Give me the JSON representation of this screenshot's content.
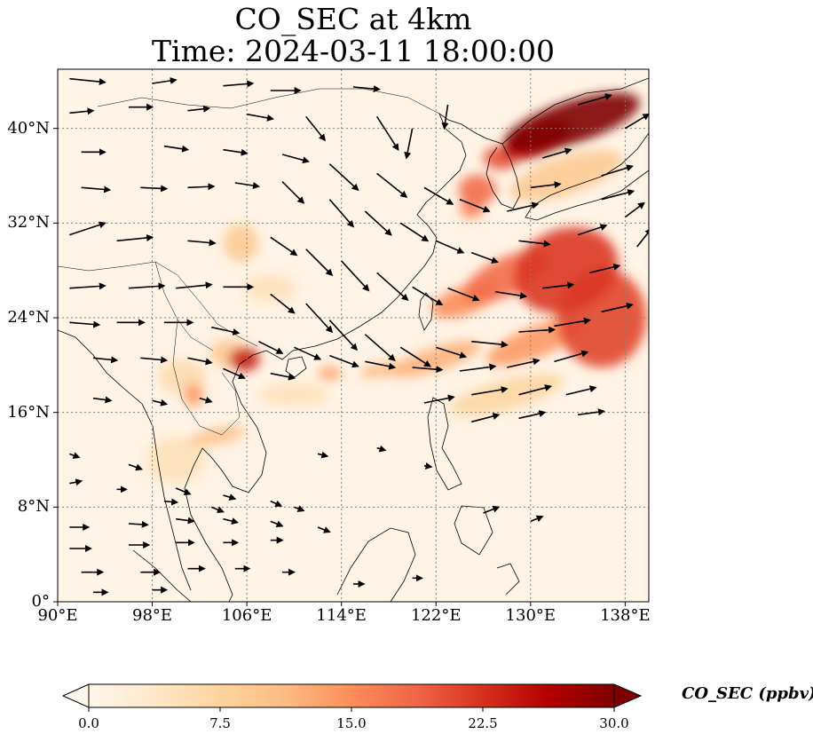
{
  "title_line1": "CO_SEC at 4km",
  "title_line2": "Time: 2024-03-11 18:00:00",
  "map": {
    "lon_range": [
      90,
      140
    ],
    "lat_range": [
      0,
      45
    ],
    "lat_ticks": [
      "40°N",
      "32°N",
      "24°N",
      "16°N",
      "8°N",
      "0°"
    ],
    "lat_values": [
      40,
      32,
      24,
      16,
      8,
      0
    ],
    "lon_ticks": [
      "90°E",
      "98°E",
      "106°E",
      "114°E",
      "122°E",
      "130°E",
      "138°E"
    ],
    "lon_values": [
      90,
      98,
      106,
      114,
      122,
      130,
      138
    ],
    "gridlines": "dotted"
  },
  "colorbar": {
    "label": "CO_SEC (ppbv)",
    "ticks": [
      "0.0",
      "7.5",
      "15.0",
      "22.5",
      "30.0"
    ],
    "tick_values": [
      0,
      7.5,
      15,
      22.5,
      30
    ],
    "range": [
      0,
      30
    ],
    "extend": "both",
    "colormap": "OrRd",
    "colors": [
      "#fff7ec",
      "#fdd49e",
      "#fc8d59",
      "#d7301f",
      "#7f0000"
    ]
  },
  "plumes": [
    {
      "lon": 133.5,
      "lat": 40.5,
      "rlon": 6,
      "rlat": 1.8,
      "value": 30,
      "rot": -18
    },
    {
      "lon": 130.5,
      "lat": 39.0,
      "rlon": 3,
      "rlat": 1.4,
      "value": 26,
      "rot": -20
    },
    {
      "lon": 127.5,
      "lat": 37.5,
      "rlon": 1.5,
      "rlat": 1.0,
      "value": 20,
      "rot": 0
    },
    {
      "lon": 125.5,
      "lat": 34.8,
      "rlon": 1.6,
      "rlat": 1.3,
      "value": 18,
      "rot": 0
    },
    {
      "lon": 125.0,
      "lat": 33.2,
      "rlon": 1.0,
      "rlat": 0.8,
      "value": 16,
      "rot": 0
    },
    {
      "lon": 133.0,
      "lat": 28.0,
      "rlon": 4.5,
      "rlat": 3.5,
      "value": 22,
      "rot": -20
    },
    {
      "lon": 136.0,
      "lat": 24.0,
      "rlon": 3.8,
      "rlat": 4.2,
      "value": 21,
      "rot": 0
    },
    {
      "lon": 128.0,
      "lat": 27.5,
      "rlon": 4,
      "rlat": 1.6,
      "value": 18,
      "rot": -25
    },
    {
      "lon": 124.5,
      "lat": 25.5,
      "rlon": 3,
      "rlat": 1.2,
      "value": 15,
      "rot": -20
    },
    {
      "lon": 130.5,
      "lat": 22.0,
      "rlon": 4.5,
      "rlat": 1.3,
      "value": 14,
      "rot": -22
    },
    {
      "lon": 122.0,
      "lat": 20.5,
      "rlon": 4,
      "rlat": 1.0,
      "value": 12,
      "rot": -18
    },
    {
      "lon": 117.5,
      "lat": 19.6,
      "rlon": 2,
      "rlat": 0.6,
      "value": 11,
      "rot": -10
    },
    {
      "lon": 113.0,
      "lat": 19.3,
      "rlon": 1.0,
      "rlat": 0.6,
      "value": 13,
      "rot": 0
    },
    {
      "lon": 105.8,
      "lat": 20.5,
      "rlon": 1.3,
      "rlat": 1.0,
      "value": 24,
      "rot": 0
    },
    {
      "lon": 104.5,
      "lat": 21.0,
      "rlon": 1.6,
      "rlat": 1.2,
      "value": 9,
      "rot": 0
    },
    {
      "lon": 101.5,
      "lat": 17.5,
      "rlon": 0.8,
      "rlat": 1.0,
      "value": 14,
      "rot": 0
    },
    {
      "lon": 103.5,
      "lat": 14.0,
      "rlon": 2.5,
      "rlat": 0.7,
      "value": 10,
      "rot": -12
    },
    {
      "lon": 105.5,
      "lat": 30.3,
      "rlon": 1.5,
      "rlat": 1.6,
      "value": 9,
      "rot": 0
    },
    {
      "lon": 108.0,
      "lat": 26.5,
      "rlon": 2.2,
      "rlat": 1.2,
      "value": 5,
      "rot": 0
    },
    {
      "lon": 133.0,
      "lat": 36.0,
      "rlon": 5,
      "rlat": 1.6,
      "value": 9,
      "rot": -18
    },
    {
      "lon": 128.0,
      "lat": 17.5,
      "rlon": 5,
      "rlat": 1.3,
      "value": 7,
      "rot": -15
    },
    {
      "lon": 110.0,
      "lat": 17.5,
      "rlon": 3,
      "rlat": 1.0,
      "value": 5,
      "rot": 0
    },
    {
      "lon": 100.0,
      "lat": 12.0,
      "rlon": 2.5,
      "rlat": 2.0,
      "value": 5,
      "rot": 0
    },
    {
      "lon": 100.5,
      "lat": 19.0,
      "rlon": 2.0,
      "rlat": 1.5,
      "value": 6,
      "rot": 0
    }
  ],
  "wind_arrows": [
    [
      91,
      44.2,
      3,
      -0.3
    ],
    [
      98,
      43.8,
      2,
      0.3
    ],
    [
      104,
      43.6,
      2.5,
      0.2
    ],
    [
      108,
      43.2,
      2.5,
      0
    ],
    [
      115,
      43.5,
      2.2,
      -0.2
    ],
    [
      91,
      41.3,
      2,
      0.2
    ],
    [
      96,
      41.8,
      2,
      0
    ],
    [
      101,
      41.5,
      1.8,
      0.2
    ],
    [
      106,
      41.2,
      2.2,
      -0.4
    ],
    [
      111,
      41,
      1.6,
      -2
    ],
    [
      117,
      41,
      1.8,
      -2.8
    ],
    [
      120,
      40,
      -0.5,
      -2.5
    ],
    [
      123,
      42,
      -0.3,
      -2
    ],
    [
      92,
      38,
      2,
      0
    ],
    [
      99,
      38.5,
      2,
      -0.3
    ],
    [
      104,
      38.2,
      2,
      -0.3
    ],
    [
      109,
      37.8,
      2.2,
      -0.6
    ],
    [
      113,
      37,
      2.4,
      -2.2
    ],
    [
      117,
      36.2,
      2.5,
      -2
    ],
    [
      121,
      35,
      2.4,
      -1.4
    ],
    [
      124,
      34,
      2.5,
      -1
    ],
    [
      92,
      35,
      2.4,
      -0.2
    ],
    [
      97,
      35,
      2.2,
      -0.1
    ],
    [
      101,
      35,
      2.2,
      0.1
    ],
    [
      105,
      35.4,
      2,
      -0.3
    ],
    [
      109,
      35.5,
      1.8,
      -1.8
    ],
    [
      113,
      34,
      2,
      -2.3
    ],
    [
      116,
      33,
      2.2,
      -2
    ],
    [
      119,
      32,
      2.3,
      -1.5
    ],
    [
      122,
      30.5,
      2.3,
      -1
    ],
    [
      125,
      29.5,
      2.2,
      -0.8
    ],
    [
      129,
      30.5,
      2.6,
      -0.3
    ],
    [
      91,
      31,
      3,
      1
    ],
    [
      95,
      30.5,
      3,
      0.3
    ],
    [
      101,
      30.5,
      2.3,
      -0.2
    ],
    [
      108,
      30.8,
      2.2,
      -1.5
    ],
    [
      111,
      29.8,
      2.2,
      -2.2
    ],
    [
      114,
      28.8,
      2.3,
      -2.5
    ],
    [
      117,
      27.8,
      2.6,
      -2.3
    ],
    [
      120,
      26.6,
      2.5,
      -1.5
    ],
    [
      123,
      26.5,
      2.6,
      -1
    ],
    [
      127,
      26.2,
      2.6,
      -0.4
    ],
    [
      131,
      26.5,
      2.6,
      0.3
    ],
    [
      135,
      27.8,
      2.5,
      0.6
    ],
    [
      91,
      26.5,
      3,
      0.2
    ],
    [
      96,
      26.5,
      3,
      0.2
    ],
    [
      100,
      26.5,
      3,
      0.3
    ],
    [
      104,
      26.6,
      2.5,
      0
    ],
    [
      108,
      26,
      2,
      -1.6
    ],
    [
      111,
      25.2,
      2.2,
      -2.4
    ],
    [
      113,
      23.8,
      2.3,
      -2.5
    ],
    [
      116,
      22.6,
      2.5,
      -2.2
    ],
    [
      119,
      21.5,
      2.5,
      -1.6
    ],
    [
      122,
      21.5,
      2.5,
      -0.8
    ],
    [
      125,
      22,
      3,
      -0.3
    ],
    [
      129,
      22.8,
      3,
      0.2
    ],
    [
      132,
      23.3,
      3,
      0.5
    ],
    [
      136,
      24.5,
      2.6,
      0.6
    ],
    [
      91,
      23.6,
      2.5,
      -0.2
    ],
    [
      95,
      23.6,
      2.3,
      0
    ],
    [
      99,
      23.6,
      2.4,
      0
    ],
    [
      103,
      23.2,
      2.3,
      -0.5
    ],
    [
      107,
      22,
      2,
      -1
    ],
    [
      110,
      21.5,
      2.2,
      -1
    ],
    [
      113,
      20.8,
      2.4,
      -0.9
    ],
    [
      116,
      20.3,
      2.5,
      -0.5
    ],
    [
      120,
      19.8,
      2.5,
      -0.2
    ],
    [
      124,
      19.5,
      3,
      0.4
    ],
    [
      128,
      19.8,
      2.7,
      0.6
    ],
    [
      132,
      20.3,
      2.8,
      0.8
    ],
    [
      93,
      20.6,
      2,
      -0.2
    ],
    [
      97,
      20.6,
      2.2,
      -0.2
    ],
    [
      101,
      20.6,
      2,
      -0.4
    ],
    [
      104,
      19.7,
      1.8,
      -0.8
    ],
    [
      108,
      19.3,
      2,
      -0.4
    ],
    [
      125,
      17.5,
      3,
      0.5
    ],
    [
      129,
      17.5,
      2.7,
      0.7
    ],
    [
      133,
      17.5,
      2.5,
      0.6
    ],
    [
      93,
      17.2,
      1.5,
      -0.2
    ],
    [
      98,
      17,
      1.2,
      -0.3
    ],
    [
      102,
      17.2,
      1,
      -0.3
    ],
    [
      121,
      16.8,
      2.5,
      0.5
    ],
    [
      125,
      15.2,
      2.3,
      0.6
    ],
    [
      129,
      15.5,
      2.2,
      0.5
    ],
    [
      134,
      15.8,
      2.2,
      0.3
    ],
    [
      91,
      12.5,
      0.8,
      -0.3
    ],
    [
      96,
      11.6,
      1.1,
      -0.4
    ],
    [
      100,
      9.6,
      1.2,
      -0.5
    ],
    [
      104,
      9,
      1,
      -0.3
    ],
    [
      108,
      8.5,
      0.9,
      -0.4
    ],
    [
      91,
      10,
      1,
      0.2
    ],
    [
      95,
      9.5,
      0.8,
      0
    ],
    [
      99,
      8.5,
      1.1,
      -0.1
    ],
    [
      103,
      8,
      1.0,
      -0.4
    ],
    [
      110,
      8,
      0.8,
      -0.3
    ],
    [
      91,
      6.3,
      1.6,
      0
    ],
    [
      96,
      6.6,
      1.6,
      -0.1
    ],
    [
      100,
      7,
      1.5,
      -0.2
    ],
    [
      104,
      7,
      1.2,
      -0.3
    ],
    [
      108,
      6.8,
      1,
      -0.4
    ],
    [
      112,
      6.3,
      1,
      -0.4
    ],
    [
      91,
      4.5,
      1.8,
      0
    ],
    [
      96,
      4.8,
      1.7,
      0
    ],
    [
      100,
      5,
      1.5,
      0
    ],
    [
      104,
      5,
      1.2,
      0
    ],
    [
      108,
      5.2,
      1,
      0
    ],
    [
      92,
      2.5,
      1.8,
      0
    ],
    [
      97,
      2.5,
      1.6,
      0
    ],
    [
      101,
      2.8,
      1.4,
      0
    ],
    [
      105,
      2.8,
      1.2,
      0
    ],
    [
      109,
      2.5,
      1.0,
      0
    ],
    [
      115,
      1.5,
      0.9,
      0
    ],
    [
      120,
      2,
      0.8,
      0
    ],
    [
      93,
      0.8,
      1.2,
      0
    ],
    [
      98,
      1,
      1.2,
      0
    ],
    [
      126,
      7.5,
      1.3,
      0.5
    ],
    [
      130,
      6.8,
      1.0,
      0.4
    ],
    [
      112,
      12.5,
      0.8,
      -0.2
    ],
    [
      117,
      13,
      0.7,
      -0.2
    ],
    [
      121,
      11.5,
      0.6,
      -0.1
    ],
    [
      134,
      31,
      2.4,
      0.8
    ],
    [
      138,
      32.5,
      1.6,
      1.2
    ],
    [
      139,
      30,
      1.2,
      1.5
    ],
    [
      136,
      36,
      2.6,
      0.8
    ],
    [
      136,
      34,
      2.7,
      0.7
    ],
    [
      130,
      35,
      2.5,
      0.3
    ],
    [
      131,
      37.5,
      2.4,
      0.7
    ],
    [
      128,
      33,
      2.6,
      0.6
    ],
    [
      134,
      42,
      2.8,
      0.8
    ],
    [
      138,
      40,
      2,
      1.2
    ]
  ]
}
